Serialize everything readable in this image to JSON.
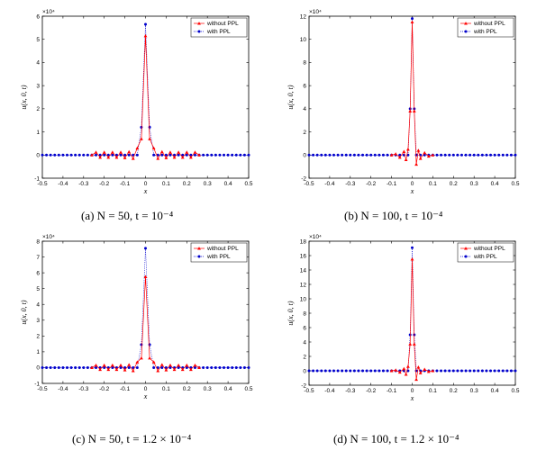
{
  "chart_data": [
    {
      "type": "line",
      "caption": "(a)  N = 50, t = 10⁻⁴",
      "xlabel": "x",
      "ylabel": "u(x, 0, t)",
      "multiplier": "×10⁴",
      "xlim": [
        -0.5,
        0.5
      ],
      "ylim": [
        -1,
        6
      ],
      "xticks": [
        "-0.5",
        "-0.4",
        "-0.3",
        "-0.2",
        "-0.1",
        "0",
        "0.1",
        "0.2",
        "0.3",
        "0.4",
        "0.5"
      ],
      "yticks": [
        "-1",
        "0",
        "1",
        "2",
        "3",
        "4",
        "5",
        "6"
      ],
      "grid": false,
      "legend": "top-right",
      "series": [
        {
          "name": "without PPL",
          "color": "#ff0000",
          "marker": "triangle",
          "x": [
            -0.26,
            -0.24,
            -0.22,
            -0.2,
            -0.18,
            -0.16,
            -0.14,
            -0.12,
            -0.1,
            -0.08,
            -0.06,
            -0.04,
            -0.02,
            0,
            0.02,
            0.04,
            0.06,
            0.08,
            0.1,
            0.12,
            0.14,
            0.16,
            0.18,
            0.2,
            0.22,
            0.24,
            0.26
          ],
          "y": [
            0,
            0.12,
            -0.1,
            0.12,
            -0.1,
            0.12,
            -0.1,
            0.12,
            -0.12,
            0.14,
            -0.15,
            0.3,
            0.7,
            5.15,
            0.7,
            0.3,
            -0.15,
            0.14,
            -0.12,
            0.12,
            -0.1,
            0.12,
            -0.1,
            0.12,
            -0.1,
            0.12,
            0
          ]
        },
        {
          "name": "with PPL",
          "color": "#0000cc",
          "marker": "dot",
          "x": [
            -0.5,
            -0.48,
            -0.46,
            -0.44,
            -0.42,
            -0.4,
            -0.38,
            -0.36,
            -0.34,
            -0.32,
            -0.3,
            -0.28,
            -0.26,
            -0.24,
            -0.22,
            -0.2,
            -0.18,
            -0.16,
            -0.14,
            -0.12,
            -0.1,
            -0.08,
            -0.06,
            -0.04,
            -0.02,
            0,
            0.02,
            0.04,
            0.06,
            0.08,
            0.1,
            0.12,
            0.14,
            0.16,
            0.18,
            0.2,
            0.22,
            0.24,
            0.26,
            0.28,
            0.3,
            0.32,
            0.34,
            0.36,
            0.38,
            0.4,
            0.42,
            0.44,
            0.46,
            0.48,
            0.5
          ],
          "y": [
            0,
            0,
            0,
            0,
            0,
            0,
            0,
            0,
            0,
            0,
            0,
            0,
            0,
            0,
            0,
            0,
            0,
            0,
            0,
            0,
            0,
            0,
            0,
            0,
            1.2,
            5.65,
            1.2,
            0,
            0,
            0,
            0,
            0,
            0,
            0,
            0,
            0,
            0,
            0,
            0,
            0,
            0,
            0,
            0,
            0,
            0,
            0,
            0,
            0,
            0,
            0,
            0
          ]
        }
      ]
    },
    {
      "type": "line",
      "caption": "(b)  N = 100, t = 10⁻⁴",
      "xlabel": "x",
      "ylabel": "u(x, 0, t)",
      "multiplier": "×10⁴",
      "xlim": [
        -0.5,
        0.5
      ],
      "ylim": [
        -2,
        12
      ],
      "xticks": [
        "-0.5",
        "-0.4",
        "-0.3",
        "-0.2",
        "-0.1",
        "0",
        "0.1",
        "0.2",
        "0.3",
        "0.4",
        "0.5"
      ],
      "yticks": [
        "-2",
        "0",
        "2",
        "4",
        "6",
        "8",
        "10",
        "12"
      ],
      "grid": false,
      "legend": "top-right",
      "series": [
        {
          "name": "without PPL",
          "color": "#ff0000",
          "marker": "triangle",
          "x": [
            -0.1,
            -0.08,
            -0.06,
            -0.04,
            -0.03,
            -0.02,
            -0.01,
            0,
            0.01,
            0.02,
            0.03,
            0.04,
            0.06,
            0.08,
            0.1
          ],
          "y": [
            0,
            0.1,
            -0.2,
            0.3,
            -0.4,
            0.5,
            3.8,
            11.5,
            3.8,
            -0.8,
            0.4,
            -0.3,
            0.2,
            -0.1,
            0
          ]
        },
        {
          "name": "with PPL",
          "color": "#0000cc",
          "marker": "dot",
          "x": [
            -0.5,
            -0.48,
            -0.46,
            -0.44,
            -0.42,
            -0.4,
            -0.38,
            -0.36,
            -0.34,
            -0.32,
            -0.3,
            -0.28,
            -0.26,
            -0.24,
            -0.22,
            -0.2,
            -0.18,
            -0.16,
            -0.14,
            -0.12,
            -0.1,
            -0.08,
            -0.06,
            -0.04,
            -0.02,
            -0.01,
            0,
            0.01,
            0.02,
            0.04,
            0.06,
            0.08,
            0.1,
            0.12,
            0.14,
            0.16,
            0.18,
            0.2,
            0.22,
            0.24,
            0.26,
            0.28,
            0.3,
            0.32,
            0.34,
            0.36,
            0.38,
            0.4,
            0.42,
            0.44,
            0.46,
            0.48,
            0.5
          ],
          "y": [
            0,
            0,
            0,
            0,
            0,
            0,
            0,
            0,
            0,
            0,
            0,
            0,
            0,
            0,
            0,
            0,
            0,
            0,
            0,
            0,
            0,
            0,
            0,
            0,
            0,
            4.0,
            11.8,
            4.0,
            0,
            0,
            0,
            0,
            0,
            0,
            0,
            0,
            0,
            0,
            0,
            0,
            0,
            0,
            0,
            0,
            0,
            0,
            0,
            0,
            0,
            0,
            0,
            0,
            0
          ]
        }
      ]
    },
    {
      "type": "line",
      "caption": "(c)  N = 50, t = 1.2 × 10⁻⁴",
      "xlabel": "x",
      "ylabel": "u(x, 0, t)",
      "multiplier": "×10⁴",
      "xlim": [
        -0.5,
        0.5
      ],
      "ylim": [
        -1,
        8
      ],
      "xticks": [
        "-0.5",
        "-0.4",
        "-0.3",
        "-0.2",
        "-0.1",
        "0",
        "0.1",
        "0.2",
        "0.3",
        "0.4",
        "0.5"
      ],
      "yticks": [
        "-1",
        "0",
        "1",
        "2",
        "3",
        "4",
        "5",
        "6",
        "7",
        "8"
      ],
      "grid": false,
      "legend": "top-right",
      "series": [
        {
          "name": "without PPL",
          "color": "#ff0000",
          "marker": "triangle",
          "x": [
            -0.26,
            -0.24,
            -0.22,
            -0.2,
            -0.18,
            -0.16,
            -0.14,
            -0.12,
            -0.1,
            -0.08,
            -0.06,
            -0.04,
            -0.02,
            0,
            0.02,
            0.04,
            0.06,
            0.08,
            0.1,
            0.12,
            0.14,
            0.16,
            0.18,
            0.2,
            0.22,
            0.24,
            0.26
          ],
          "y": [
            0,
            0.15,
            -0.12,
            0.15,
            -0.12,
            0.15,
            -0.12,
            0.15,
            -0.15,
            0.18,
            -0.2,
            0.35,
            0.6,
            5.75,
            0.6,
            0.35,
            -0.2,
            0.18,
            -0.15,
            0.15,
            -0.12,
            0.15,
            -0.12,
            0.15,
            -0.12,
            0.15,
            0
          ]
        },
        {
          "name": "with PPL",
          "color": "#0000cc",
          "marker": "dot",
          "x": [
            -0.5,
            -0.48,
            -0.46,
            -0.44,
            -0.42,
            -0.4,
            -0.38,
            -0.36,
            -0.34,
            -0.32,
            -0.3,
            -0.28,
            -0.26,
            -0.24,
            -0.22,
            -0.2,
            -0.18,
            -0.16,
            -0.14,
            -0.12,
            -0.1,
            -0.08,
            -0.06,
            -0.04,
            -0.02,
            0,
            0.02,
            0.04,
            0.06,
            0.08,
            0.1,
            0.12,
            0.14,
            0.16,
            0.18,
            0.2,
            0.22,
            0.24,
            0.26,
            0.28,
            0.3,
            0.32,
            0.34,
            0.36,
            0.38,
            0.4,
            0.42,
            0.44,
            0.46,
            0.48,
            0.5
          ],
          "y": [
            0,
            0,
            0,
            0,
            0,
            0,
            0,
            0,
            0,
            0,
            0,
            0,
            0,
            0,
            0,
            0,
            0,
            0,
            0,
            0,
            0,
            0,
            0,
            0,
            1.45,
            7.55,
            1.45,
            0,
            0,
            0,
            0,
            0,
            0,
            0,
            0,
            0,
            0,
            0,
            0,
            0,
            0,
            0,
            0,
            0,
            0,
            0,
            0,
            0,
            0,
            0,
            0
          ]
        }
      ]
    },
    {
      "type": "line",
      "caption": "(d)  N = 100, t = 1.2 × 10⁻⁴",
      "xlabel": "x",
      "ylabel": "u(x, 0, t)",
      "multiplier": "×10⁴",
      "xlim": [
        -0.5,
        0.5
      ],
      "ylim": [
        -2,
        18
      ],
      "xticks": [
        "-0.5",
        "-0.4",
        "-0.3",
        "-0.2",
        "-0.1",
        "0",
        "0.1",
        "0.2",
        "0.3",
        "0.4",
        "0.5"
      ],
      "yticks": [
        "-2",
        "0",
        "2",
        "4",
        "6",
        "8",
        "10",
        "12",
        "14",
        "16",
        "18"
      ],
      "grid": false,
      "legend": "top-right",
      "series": [
        {
          "name": "without PPL",
          "color": "#ff0000",
          "marker": "triangle",
          "x": [
            -0.1,
            -0.08,
            -0.06,
            -0.04,
            -0.03,
            -0.02,
            -0.01,
            0,
            0.01,
            0.02,
            0.03,
            0.04,
            0.06,
            0.08,
            0.1
          ],
          "y": [
            0,
            0.1,
            -0.2,
            0.3,
            -0.5,
            0.6,
            3.7,
            15.5,
            3.7,
            -1.2,
            0.5,
            -0.3,
            0.2,
            -0.1,
            0
          ]
        },
        {
          "name": "with PPL",
          "color": "#0000cc",
          "marker": "dot",
          "x": [
            -0.5,
            -0.48,
            -0.46,
            -0.44,
            -0.42,
            -0.4,
            -0.38,
            -0.36,
            -0.34,
            -0.32,
            -0.3,
            -0.28,
            -0.26,
            -0.24,
            -0.22,
            -0.2,
            -0.18,
            -0.16,
            -0.14,
            -0.12,
            -0.1,
            -0.08,
            -0.06,
            -0.04,
            -0.02,
            -0.01,
            0,
            0.01,
            0.02,
            0.04,
            0.06,
            0.08,
            0.1,
            0.12,
            0.14,
            0.16,
            0.18,
            0.2,
            0.22,
            0.24,
            0.26,
            0.28,
            0.3,
            0.32,
            0.34,
            0.36,
            0.38,
            0.4,
            0.42,
            0.44,
            0.46,
            0.48,
            0.5
          ],
          "y": [
            0,
            0,
            0,
            0,
            0,
            0,
            0,
            0,
            0,
            0,
            0,
            0,
            0,
            0,
            0,
            0,
            0,
            0,
            0,
            0,
            0,
            0,
            0,
            0,
            0,
            5.0,
            17.1,
            5.0,
            0,
            0,
            0,
            0,
            0,
            0,
            0,
            0,
            0,
            0,
            0,
            0,
            0,
            0,
            0,
            0,
            0,
            0,
            0,
            0,
            0,
            0,
            0,
            0,
            0
          ]
        }
      ]
    }
  ]
}
